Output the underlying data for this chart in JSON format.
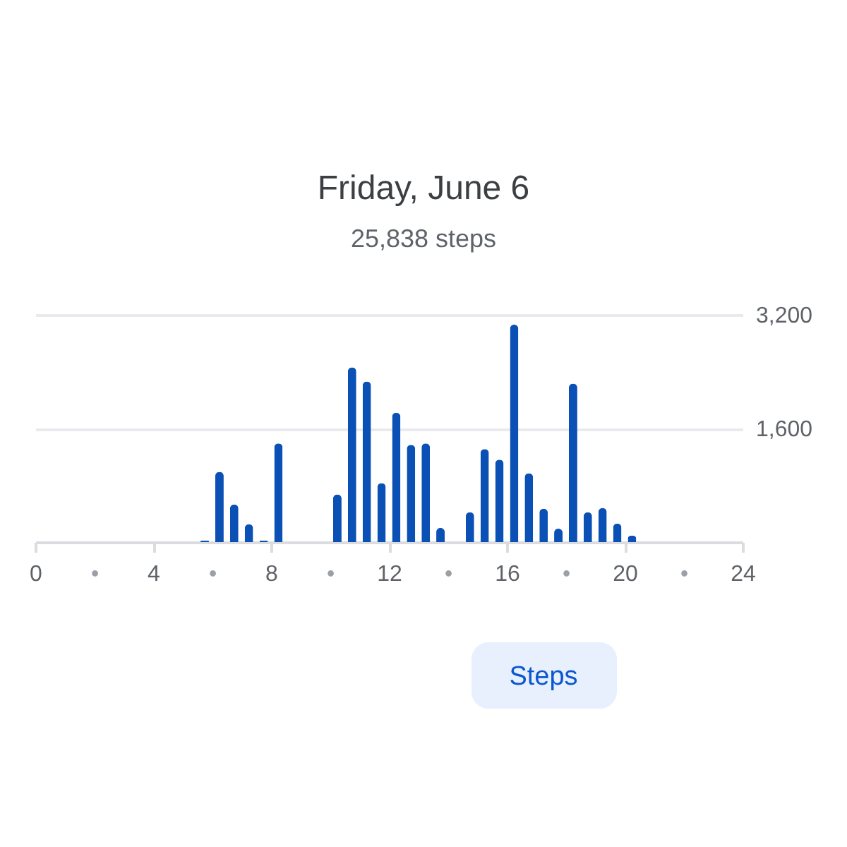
{
  "chart_data": {
    "type": "bar",
    "title": "Friday, June 6",
    "subtitle": "25,838 steps",
    "x": [
      5.75,
      6.25,
      6.75,
      7.25,
      7.75,
      8.25,
      10.25,
      10.75,
      11.25,
      11.75,
      12.25,
      12.75,
      13.25,
      13.75,
      14.75,
      15.25,
      15.75,
      16.25,
      16.75,
      17.25,
      17.75,
      18.25,
      18.75,
      19.25,
      19.75,
      20.25
    ],
    "values": [
      20,
      990,
      530,
      250,
      20,
      1390,
      670,
      2460,
      2260,
      830,
      1820,
      1370,
      1390,
      200,
      420,
      1310,
      1160,
      3060,
      970,
      470,
      190,
      2230,
      420,
      480,
      260,
      90
    ],
    "color": "#0b50b5",
    "xlim": [
      0,
      24
    ],
    "xticks": [
      0,
      {
        "value": 2,
        "label": "•"
      },
      4,
      {
        "value": 6,
        "label": "•"
      },
      8,
      {
        "value": 10,
        "label": "•"
      },
      12,
      {
        "value": 14,
        "label": "•"
      },
      16,
      {
        "value": 18,
        "label": "•"
      },
      20,
      {
        "value": 22,
        "label": "•"
      },
      24
    ],
    "ylim": [
      0,
      3200
    ],
    "yticks": [
      {
        "value": 1600,
        "label": "1,600"
      },
      {
        "value": 3200,
        "label": "3,200"
      }
    ],
    "grid": "y",
    "annotations": [
      "Steps"
    ]
  }
}
